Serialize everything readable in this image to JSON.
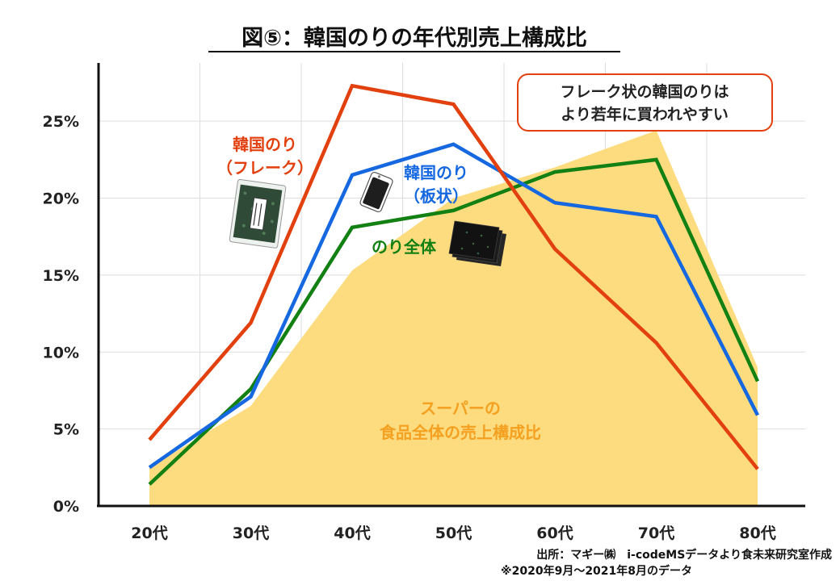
{
  "title": "図⑤：韓国のりの年代別売上構成比",
  "callout": {
    "line1": "フレーク状の韓国のりは",
    "line2": "より若年に買われやすい"
  },
  "source": {
    "line1": "出所：マギー㈱　i-codeMSデータより食未来研究室作成",
    "line2": "※2020年9月～2021年8月のデータ"
  },
  "colors": {
    "flake": "#e2400f",
    "sheet": "#1668e0",
    "nori_total": "#128012",
    "supermarket_area": "#fddc7f",
    "supermarket_label": "#f4a020"
  },
  "icons": {
    "flake_package": "seasoned-nori-flakes-package-icon",
    "sheet_pack": "nori-sheet-pack-icon",
    "nori_stack": "nori-sheets-stack-icon"
  },
  "chart_data": {
    "type": "line",
    "categories": [
      "20代",
      "30代",
      "40代",
      "50代",
      "60代",
      "70代",
      "80代"
    ],
    "ylim": [
      0,
      0.27
    ],
    "yticks": [
      0,
      0.05,
      0.1,
      0.15,
      0.2,
      0.25
    ],
    "ytick_labels": [
      "0%",
      "5%",
      "10%",
      "15%",
      "20%",
      "25%"
    ],
    "grid": true,
    "series": [
      {
        "key": "supermarket",
        "type": "area",
        "label_line1": "スーパーの",
        "label_line2": "食品全体の売上構成比",
        "values": [
          0.025,
          0.065,
          0.153,
          0.2,
          0.22,
          0.244,
          0.09
        ]
      },
      {
        "key": "flake",
        "type": "line",
        "label_line1": "韓国のり",
        "label_line2": "（フレーク）",
        "values": [
          0.043,
          0.119,
          0.273,
          0.261,
          0.167,
          0.106,
          0.024
        ]
      },
      {
        "key": "sheet",
        "type": "line",
        "label_line1": "韓国のり",
        "label_line2": "（板状）",
        "values": [
          0.025,
          0.071,
          0.215,
          0.235,
          0.197,
          0.188,
          0.059
        ]
      },
      {
        "key": "nori_total",
        "type": "line",
        "label_line1": "のり全体",
        "label_line2": "",
        "values": [
          0.014,
          0.076,
          0.181,
          0.192,
          0.217,
          0.225,
          0.081
        ]
      }
    ]
  }
}
